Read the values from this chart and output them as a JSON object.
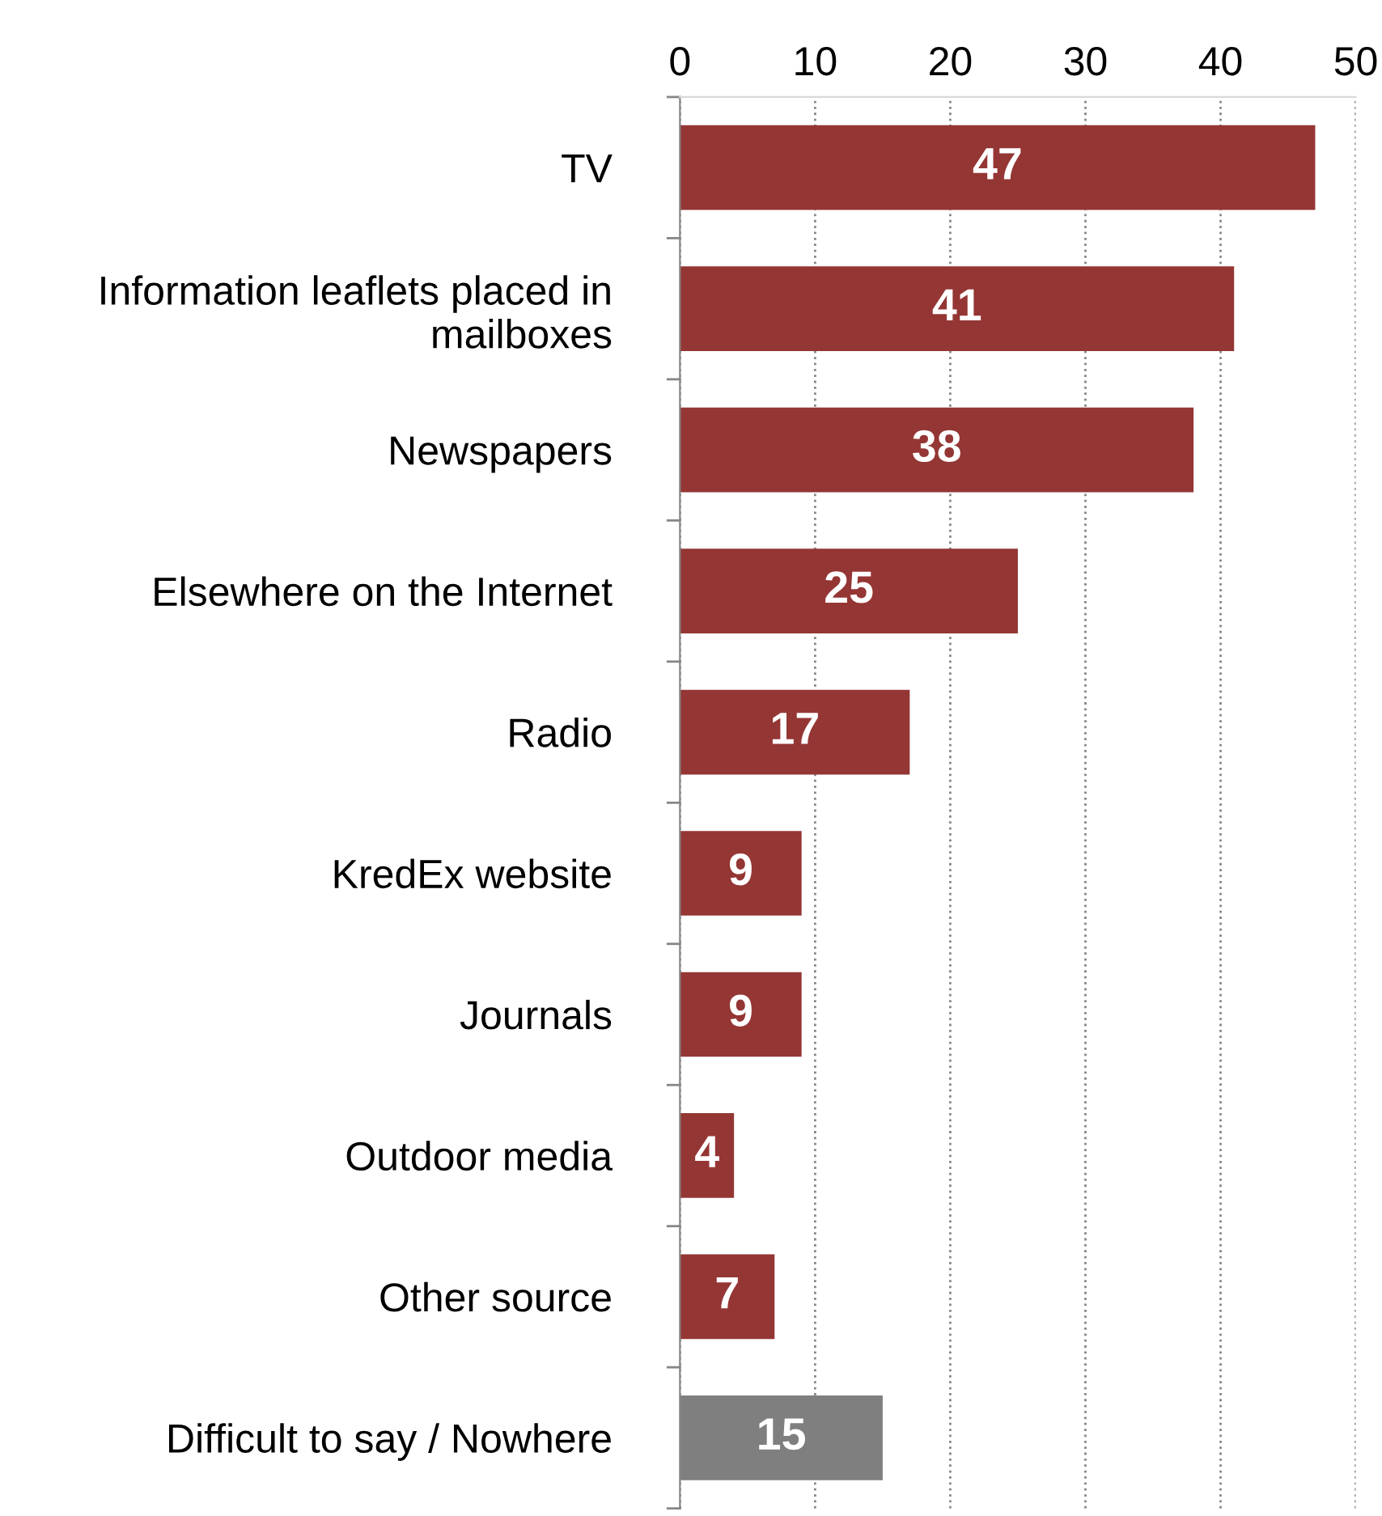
{
  "chart_data": {
    "type": "bar",
    "orientation": "horizontal",
    "categories": [
      "TV",
      "Information leaflets placed in\nmailboxes",
      "Newspapers",
      "Elsewhere on the Internet",
      "Radio",
      "KredEx website",
      "Journals",
      "Outdoor media",
      "Other source",
      "Difficult to say / Nowhere"
    ],
    "values": [
      47,
      41,
      38,
      25,
      17,
      9,
      9,
      4,
      7,
      15
    ],
    "colors": [
      "#943634",
      "#943634",
      "#943634",
      "#943634",
      "#943634",
      "#943634",
      "#943634",
      "#943634",
      "#943634",
      "#7f7f7f"
    ],
    "xlim": [
      0,
      50
    ],
    "xticks": [
      0,
      10,
      20,
      30,
      40,
      50
    ],
    "grid": "x",
    "data_labels": true
  }
}
